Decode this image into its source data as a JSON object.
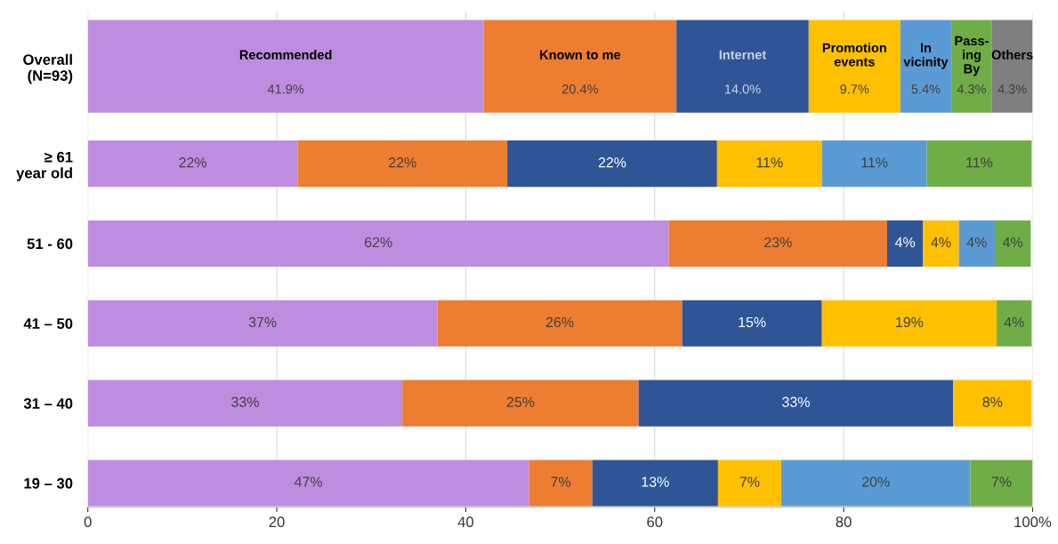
{
  "chart_data": {
    "type": "bar",
    "orientation": "horizontal",
    "stacked": true,
    "legend": false,
    "grid": "x",
    "categories": [
      "Overall\n(N=93)",
      "≥ 61\nyear old",
      "51 - 60",
      "41 – 50",
      "31 – 40",
      "19 – 30"
    ],
    "xlim": [
      0,
      100
    ],
    "xticks": [
      0,
      20,
      40,
      60,
      80,
      {
        "value": 100,
        "label": "100%"
      }
    ],
    "series": [
      {
        "name": "Recommended",
        "color": "#be8ddf",
        "values": [
          41.9,
          22.2,
          61.5,
          37.0,
          33.3,
          46.7
        ],
        "value_labels": [
          "41.9%",
          "22%",
          "62%",
          "37%",
          "33%",
          "47%"
        ]
      },
      {
        "name": "Known to me",
        "color": "#ed7d31",
        "values": [
          20.4,
          22.2,
          23.1,
          25.9,
          25.0,
          6.7
        ],
        "value_labels": [
          "20.4%",
          "22%",
          "23%",
          "26%",
          "25%",
          "7%"
        ]
      },
      {
        "name": "Internet",
        "color": "#2f5597",
        "values": [
          14.0,
          22.2,
          3.8,
          14.8,
          33.3,
          13.3
        ],
        "value_labels": [
          "14.0%",
          "22%",
          "4%",
          "15%",
          "33%",
          "13%"
        ]
      },
      {
        "name": "Promotion\nevents",
        "color": "#ffc000",
        "values": [
          9.7,
          11.1,
          3.8,
          18.5,
          8.3,
          6.7
        ],
        "value_labels": [
          "9.7%",
          "11%",
          "4%",
          "19%",
          "8%",
          "7%"
        ]
      },
      {
        "name": "In\nvicinity",
        "color": "#5b9bd5",
        "values": [
          5.4,
          11.1,
          3.8,
          null,
          null,
          20.0
        ],
        "value_labels": [
          "5.4%",
          "11%",
          "4%",
          null,
          null,
          "20%"
        ]
      },
      {
        "name": "Pass-\ning\nBy",
        "color": "#70ad47",
        "values": [
          4.3,
          11.1,
          3.8,
          3.7,
          null,
          6.6
        ],
        "value_labels": [
          "4.3%",
          "11%",
          "4%",
          "4%",
          null,
          "7%"
        ]
      },
      {
        "name": "Others",
        "color": "#7f7f7f",
        "values": [
          4.3,
          null,
          null,
          null,
          null,
          null
        ],
        "value_labels": [
          "4.3%",
          null,
          null,
          null,
          null,
          null
        ]
      }
    ]
  }
}
